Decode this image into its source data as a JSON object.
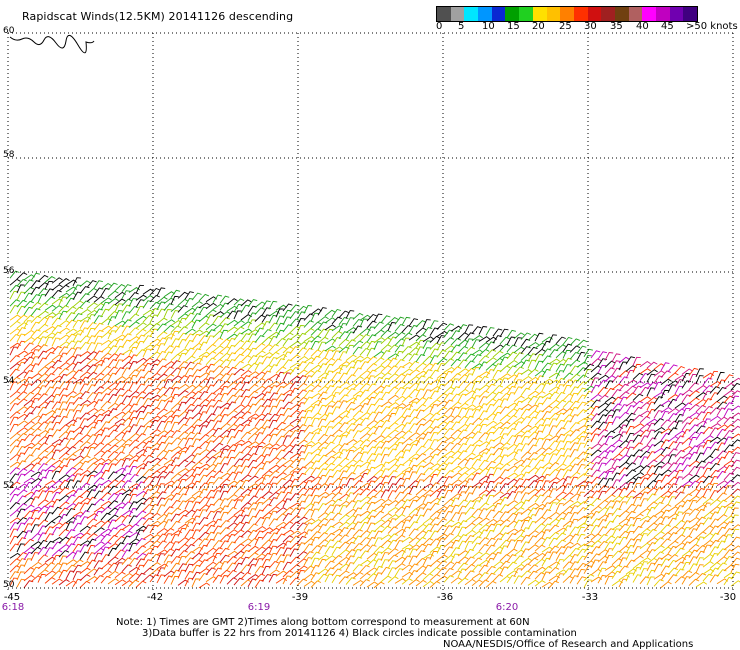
{
  "header": {
    "title": "Rapidscat Winds(12.5KM) 20141126 descending"
  },
  "legend": {
    "colors": [
      "#505050",
      "#a0a0a0",
      "#00e6ff",
      "#0096ff",
      "#0a28d2",
      "#00a000",
      "#20d020",
      "#ffe000",
      "#ffc000",
      "#ff8000",
      "#ff3000",
      "#d01010",
      "#a02020",
      "#704010",
      "#b06060",
      "#ff00ff",
      "#c000c0",
      "#7000b0",
      "#400080"
    ],
    "labels": [
      "0",
      "5",
      "10",
      "15",
      "20",
      "25",
      "30",
      "35",
      "40",
      "45",
      ">50 knots"
    ]
  },
  "axes": {
    "lat_ticks": [
      "60",
      "58",
      "56",
      "54",
      "52",
      "50"
    ],
    "lon_ticks": [
      "-45",
      "-42",
      "-39",
      "-36",
      "-33",
      "-30"
    ],
    "time_ticks": [
      "6:18",
      "6:19",
      "6:20"
    ]
  },
  "notes": {
    "line1": "Note: 1) Times are GMT 2)Times along bottom correspond to measurement at 60N",
    "line2": "3)Data buffer is 22 hrs from 20141126 4) Black circles indicate possible contamination",
    "credit": "NOAA/NESDIS/Office of Research and Applications"
  }
}
